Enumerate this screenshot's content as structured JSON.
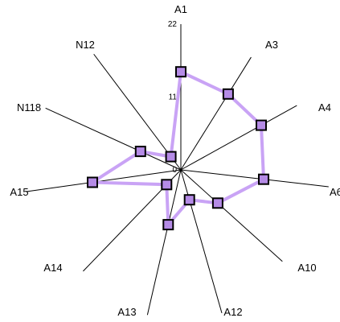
{
  "chart_data": {
    "type": "radar",
    "title": "",
    "axes": [
      "A1",
      "A3",
      "A4",
      "A6",
      "A10",
      "A12",
      "A13",
      "A14",
      "A15",
      "N118",
      "N12"
    ],
    "ticks": [
      "0",
      "11",
      "22"
    ],
    "range": [
      0,
      22
    ],
    "grid": false,
    "series": [
      {
        "values": [
          14.8,
          13.5,
          13.9,
          12.6,
          7.5,
          4.7,
          8.5,
          3.1,
          13.5,
          6.7,
          2.5
        ],
        "line_color": "#c9a3f5",
        "marker_color": "#b58be6",
        "marker": "square"
      }
    ]
  }
}
